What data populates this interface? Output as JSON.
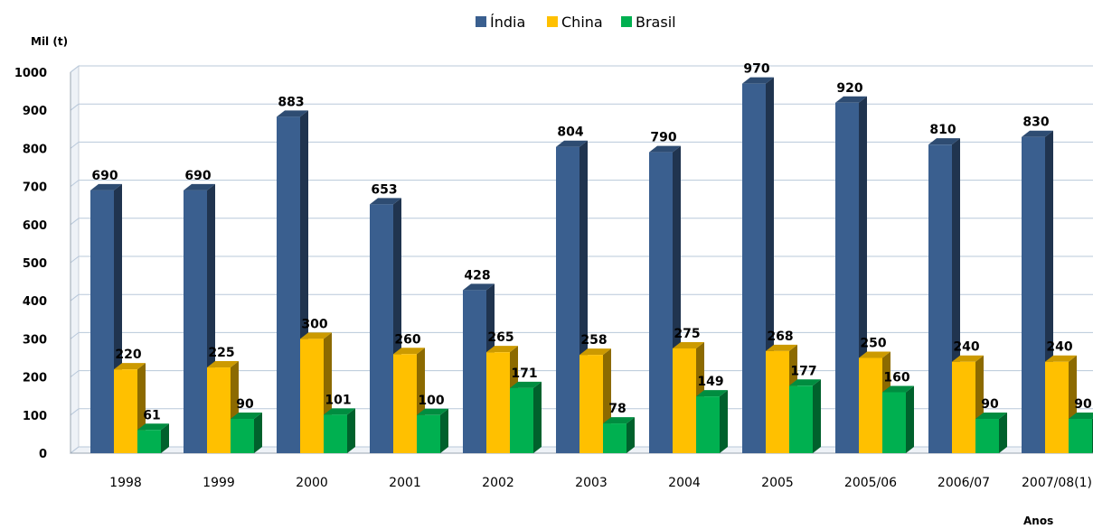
{
  "chart_data": {
    "type": "bar",
    "title": "",
    "ylabel": "Mil (t)",
    "xlabel": "Anos",
    "ylim": [
      0,
      1000
    ],
    "yticks": [
      0,
      100,
      200,
      300,
      400,
      500,
      600,
      700,
      800,
      900,
      1000
    ],
    "grid": true,
    "legend_position": "top-center",
    "categories": [
      "1998",
      "1999",
      "2000",
      "2001",
      "2002",
      "2003",
      "2004",
      "2005",
      "2005/06",
      "2006/07",
      "2007/08(1)"
    ],
    "series": [
      {
        "name": "Índia",
        "color": "#3A5F8F",
        "values": [
          690,
          690,
          883,
          653,
          428,
          804,
          790,
          970,
          920,
          810,
          830
        ]
      },
      {
        "name": "China",
        "color": "#FFC000",
        "values": [
          220,
          225,
          300,
          260,
          265,
          258,
          275,
          268,
          250,
          240,
          240
        ]
      },
      {
        "name": "Brasil",
        "color": "#00B050",
        "values": [
          61,
          90,
          101,
          100,
          171,
          78,
          149,
          177,
          160,
          90,
          90
        ]
      }
    ]
  }
}
